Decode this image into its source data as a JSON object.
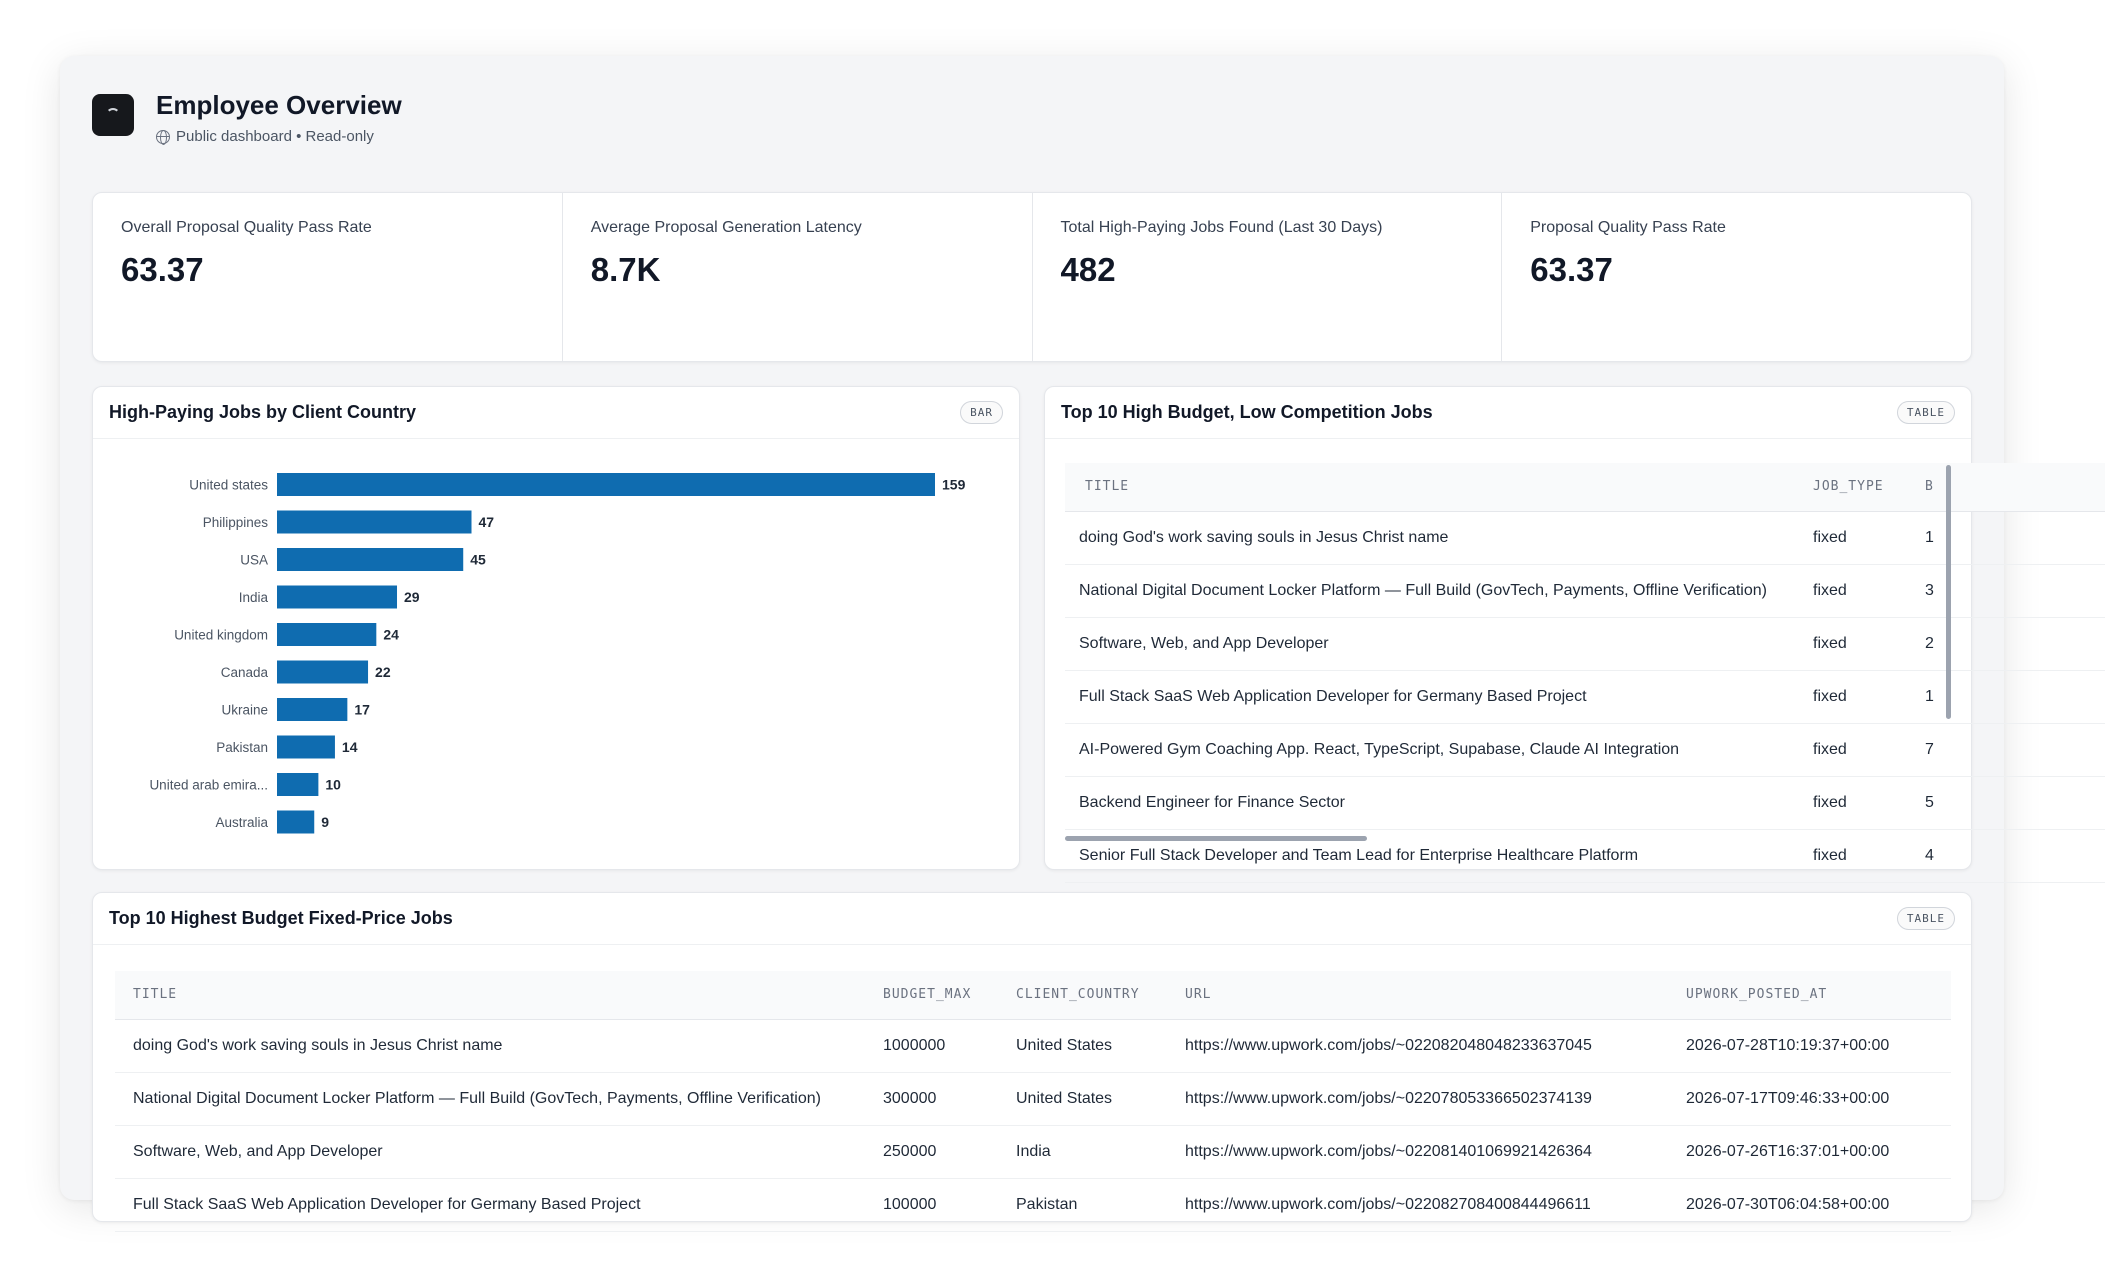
{
  "header": {
    "title": "Employee Overview",
    "subtitle": "Public dashboard • Read-only"
  },
  "kpis": [
    {
      "label": "Overall Proposal Quality Pass Rate",
      "value": "63.37"
    },
    {
      "label": "Average Proposal Generation Latency",
      "value": "8.7K"
    },
    {
      "label": "Total High-Paying Jobs Found (Last 30 Days)",
      "value": "482"
    },
    {
      "label": "Proposal Quality Pass Rate",
      "value": "63.37"
    }
  ],
  "bar_card": {
    "title": "High-Paying Jobs by Client Country",
    "badge": "BAR"
  },
  "chart_data": {
    "type": "bar",
    "orientation": "horizontal",
    "categories": [
      "United states",
      "Philippines",
      "USA",
      "India",
      "United kingdom",
      "Canada",
      "Ukraine",
      "Pakistan",
      "United arab emira...",
      "Australia"
    ],
    "values": [
      159,
      47,
      45,
      29,
      24,
      22,
      17,
      14,
      10,
      9
    ],
    "title": "High-Paying Jobs by Client Country",
    "color": "#0f6cb0",
    "data_labels": true,
    "grid": false
  },
  "top10": {
    "title": "Top 10 High Budget, Low Competition Jobs",
    "badge": "TABLE",
    "columns": [
      "TITLE",
      "JOB_TYPE",
      "B"
    ],
    "rows": [
      [
        "doing God's work saving souls in Jesus Christ name",
        "fixed",
        "1"
      ],
      [
        "National Digital Document Locker Platform — Full Build (GovTech, Payments, Offline Verification)",
        "fixed",
        "3"
      ],
      [
        "Software, Web, and App Developer",
        "fixed",
        "2"
      ],
      [
        "Full Stack SaaS Web Application Developer for Germany Based Project",
        "fixed",
        "1"
      ],
      [
        "AI-Powered Gym Coaching App. React, TypeScript, Supabase, Claude AI Integration",
        "fixed",
        "7"
      ],
      [
        "Backend Engineer for Finance Sector",
        "fixed",
        "5"
      ],
      [
        "Senior Full Stack Developer and Team Lead for Enterprise Healthcare Platform",
        "fixed",
        "4"
      ]
    ]
  },
  "budget": {
    "title": "Top 10 Highest Budget Fixed-Price Jobs",
    "badge": "TABLE",
    "columns": [
      "TITLE",
      "BUDGET_MAX",
      "CLIENT_COUNTRY",
      "URL",
      "UPWORK_POSTED_AT"
    ],
    "rows": [
      [
        "doing God's work saving souls in Jesus Christ name",
        "1000000",
        "United States",
        "https://www.upwork.com/jobs/~022082048048233637045",
        "2026-07-28T10:19:37+00:00"
      ],
      [
        "National Digital Document Locker Platform — Full Build (GovTech, Payments, Offline Verification)",
        "300000",
        "United States",
        "https://www.upwork.com/jobs/~022078053366502374139",
        "2026-07-17T09:46:33+00:00"
      ],
      [
        "Software, Web, and App Developer",
        "250000",
        "India",
        "https://www.upwork.com/jobs/~022081401069921426364",
        "2026-07-26T16:37:01+00:00"
      ],
      [
        "Full Stack SaaS Web Application Developer for Germany Based Project",
        "100000",
        "Pakistan",
        "https://www.upwork.com/jobs/~022082708400844496611",
        "2026-07-30T06:04:58+00:00"
      ]
    ]
  }
}
